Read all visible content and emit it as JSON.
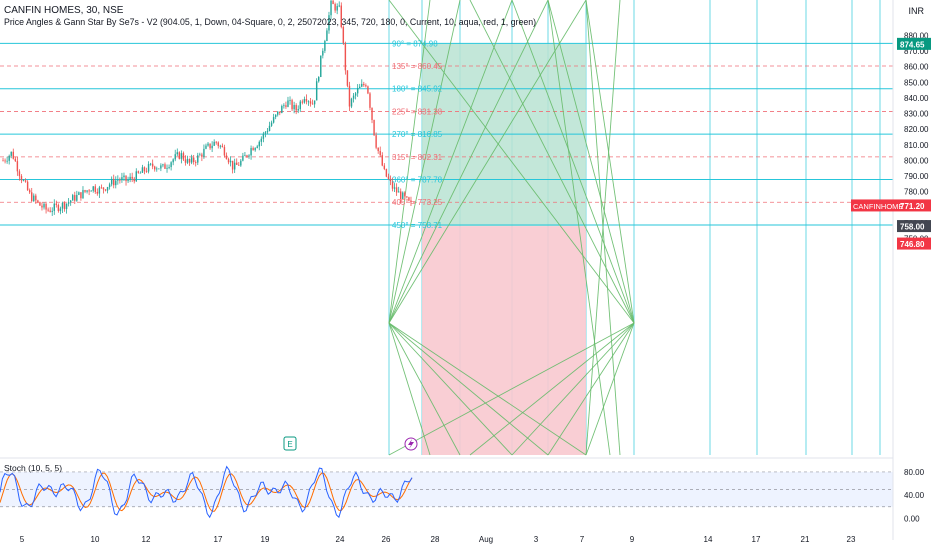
{
  "header": {
    "title_line": "CANFIN HOMES, 30, NSE",
    "indicator_line": "Price Angles & Gann Star By Se7s - V2 (904.05, 1, Down, 04-Square, 0, 2, 25072023, 345, 720, 180, 0, Current, 10, aqua, red, 1, green)",
    "currency": "INR"
  },
  "markers": {
    "earnings": "E",
    "dividend_icon": "lightning-icon"
  },
  "colors": {
    "up": "#26a69a",
    "down": "#ef5350",
    "aqua": "#26c6da",
    "red_level": "#f06f77",
    "gann": "#66bb6a",
    "profit_zone": "#b9e3d2",
    "loss_zone": "#f8c9cf",
    "stoch_k": "#2962ff",
    "stoch_d": "#ff6d00",
    "price_tag": "#f23645",
    "tp_tag": "#089981"
  },
  "chart_data": [
    {
      "type": "candlestick",
      "symbol": "CANFINHOME",
      "x_ticks": [
        "5",
        "10",
        "12",
        "17",
        "19",
        "24",
        "26",
        "28",
        "Aug",
        "3",
        "7",
        "9",
        "14",
        "17",
        "21",
        "23"
      ],
      "y_ticks": [
        "750.00",
        "760.00",
        "770.00",
        "780.00",
        "790.00",
        "800.00",
        "810.00",
        "820.00",
        "830.00",
        "840.00",
        "850.00",
        "860.00",
        "870.00",
        "880.00"
      ],
      "ylim": [
        744,
        888
      ],
      "close_path": [
        800,
        805,
        790,
        778,
        772,
        768,
        770,
        772,
        776,
        779,
        783,
        781,
        785,
        788,
        787,
        790,
        794,
        797,
        795,
        800,
        804,
        798,
        802,
        808,
        812,
        806,
        795,
        800,
        808,
        813,
        822,
        830,
        838,
        832,
        842,
        836,
        870,
        900,
        896,
        835,
        845,
        850,
        812,
        792,
        782,
        777,
        771.2
      ],
      "levels": [
        {
          "label": "90° = 874.98",
          "value": 874.98,
          "color": "aqua"
        },
        {
          "label": "135° = 860.45",
          "value": 860.45,
          "color": "red"
        },
        {
          "label": "180° = 845.92",
          "value": 845.92,
          "color": "aqua"
        },
        {
          "label": "225° = 831.38",
          "value": 831.38,
          "color": "red"
        },
        {
          "label": "270° = 816.85",
          "value": 816.85,
          "color": "aqua"
        },
        {
          "label": "315° = 802.31",
          "value": 802.31,
          "color": "red"
        },
        {
          "label": "360° = 787.78",
          "value": 787.78,
          "color": "aqua"
        },
        {
          "label": "405° = 773.25",
          "value": 773.25,
          "color": "red"
        },
        {
          "label": "450° = 758.71",
          "value": 758.71,
          "color": "aqua"
        }
      ],
      "price_labels": [
        {
          "label": "874.65",
          "value": 874.65,
          "role": "target"
        },
        {
          "symbol": "CANFINHOME",
          "label": "771.20",
          "value": 771.2,
          "role": "last"
        },
        {
          "label": "758.00",
          "value": 758.0,
          "role": "entry"
        },
        {
          "label": "746.80",
          "value": 746.8,
          "role": "stop"
        }
      ],
      "position": {
        "entry": 758.0,
        "target": 874.65,
        "stop": 746.8
      }
    },
    {
      "type": "line",
      "title": "Stoch (10, 5, 5)",
      "y_ticks": [
        "80.00",
        "40.00",
        "0.00"
      ],
      "ylim": [
        -8,
        92
      ],
      "band": [
        20,
        80
      ],
      "series": [
        {
          "name": "%K",
          "color": "#2962ff"
        },
        {
          "name": "%D",
          "color": "#ff6d00"
        }
      ]
    }
  ]
}
